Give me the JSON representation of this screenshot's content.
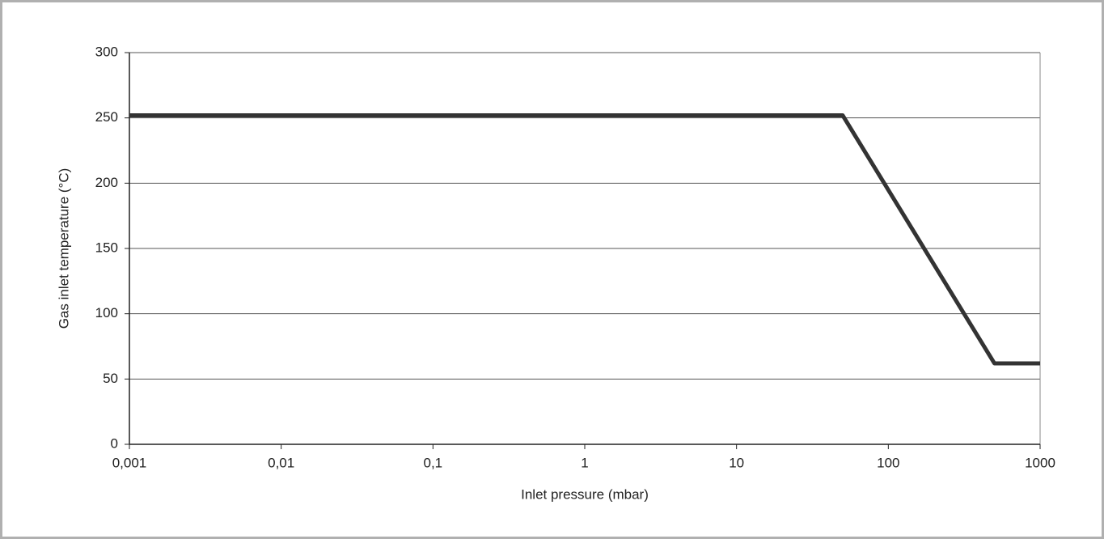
{
  "chart_data": {
    "type": "line",
    "x_label": "Inlet pressure (mbar)",
    "y_label": "Gas inlet temperature (°C)",
    "x_scale": "log",
    "x": [
      0.001,
      50,
      500,
      1000
    ],
    "values": [
      252,
      252,
      62,
      62
    ],
    "color": "#333333",
    "xlim": [
      0.001,
      1000
    ],
    "ylim": [
      0,
      300
    ],
    "xticks": [
      {
        "value": 0.001,
        "label": "0,001"
      },
      {
        "value": 0.01,
        "label": "0,01"
      },
      {
        "value": 0.1,
        "label": "0,1"
      },
      1,
      10,
      100,
      1000
    ],
    "yticks": [
      0,
      50,
      100,
      150,
      200,
      250,
      300
    ],
    "grid": true
  }
}
